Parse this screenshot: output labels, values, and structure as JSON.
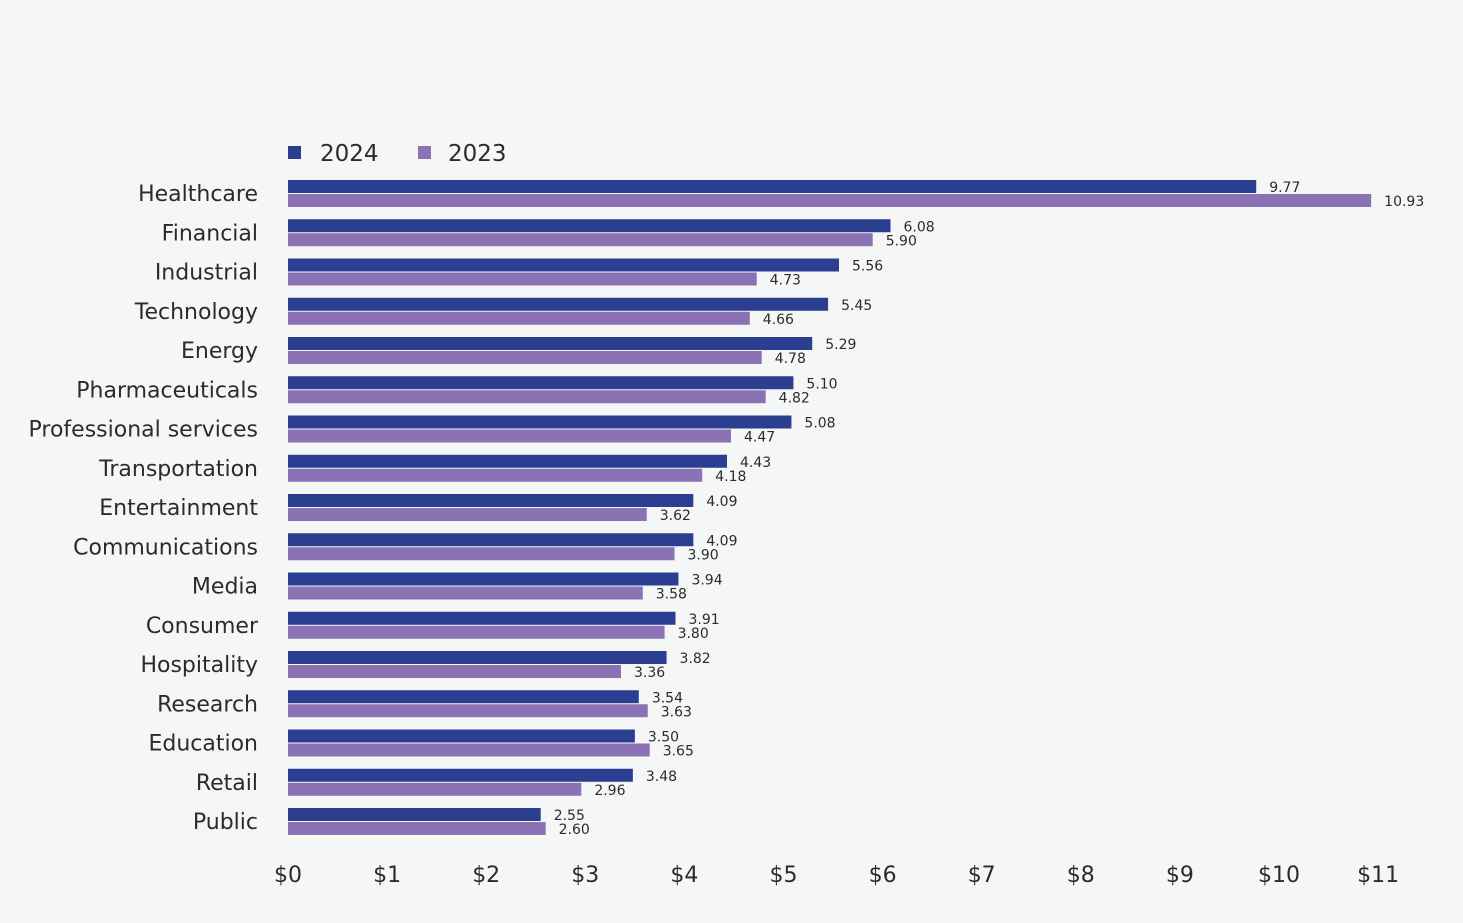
{
  "chart_data": {
    "type": "bar",
    "orientation": "horizontal",
    "title": "",
    "xlabel": "",
    "ylabel": "",
    "xlim": [
      0,
      11
    ],
    "x_ticks": [
      0,
      1,
      2,
      3,
      4,
      5,
      6,
      7,
      8,
      9,
      10,
      11
    ],
    "x_tick_labels": [
      "$0",
      "$1",
      "$2",
      "$3",
      "$4",
      "$5",
      "$6",
      "$7",
      "$8",
      "$9",
      "$10",
      "$11"
    ],
    "legend_position": "top-left",
    "categories": [
      "Healthcare",
      "Financial",
      "Industrial",
      "Technology",
      "Energy",
      "Pharmaceuticals",
      "Professional services",
      "Transportation",
      "Entertainment",
      "Communications",
      "Media",
      "Consumer",
      "Hospitality",
      "Research",
      "Education",
      "Retail",
      "Public"
    ],
    "series": [
      {
        "name": "2024",
        "color": "#2c3e8f",
        "values": [
          9.77,
          6.08,
          5.56,
          5.45,
          5.29,
          5.1,
          5.08,
          4.43,
          4.09,
          4.09,
          3.94,
          3.91,
          3.82,
          3.54,
          3.5,
          3.48,
          2.55
        ],
        "labels": [
          "9.77",
          "6.08",
          "5.56",
          "5.45",
          "5.29",
          "5.10",
          "5.08",
          "4.43",
          "4.09",
          "4.09",
          "3.94",
          "3.91",
          "3.82",
          "3.54",
          "3.50",
          "3.48",
          "2.55"
        ]
      },
      {
        "name": "2023",
        "color": "#8b72b5",
        "values": [
          10.93,
          5.9,
          4.73,
          4.66,
          4.78,
          4.82,
          4.47,
          4.18,
          3.62,
          3.9,
          3.58,
          3.8,
          3.36,
          3.63,
          3.65,
          2.96,
          2.6
        ],
        "labels": [
          "10.93",
          "5.90",
          "4.73",
          "4.66",
          "4.78",
          "4.82",
          "4.47",
          "4.18",
          "3.62",
          "3.90",
          "3.58",
          "3.80",
          "3.36",
          "3.63",
          "3.65",
          "2.96",
          "2.60"
        ]
      }
    ]
  }
}
